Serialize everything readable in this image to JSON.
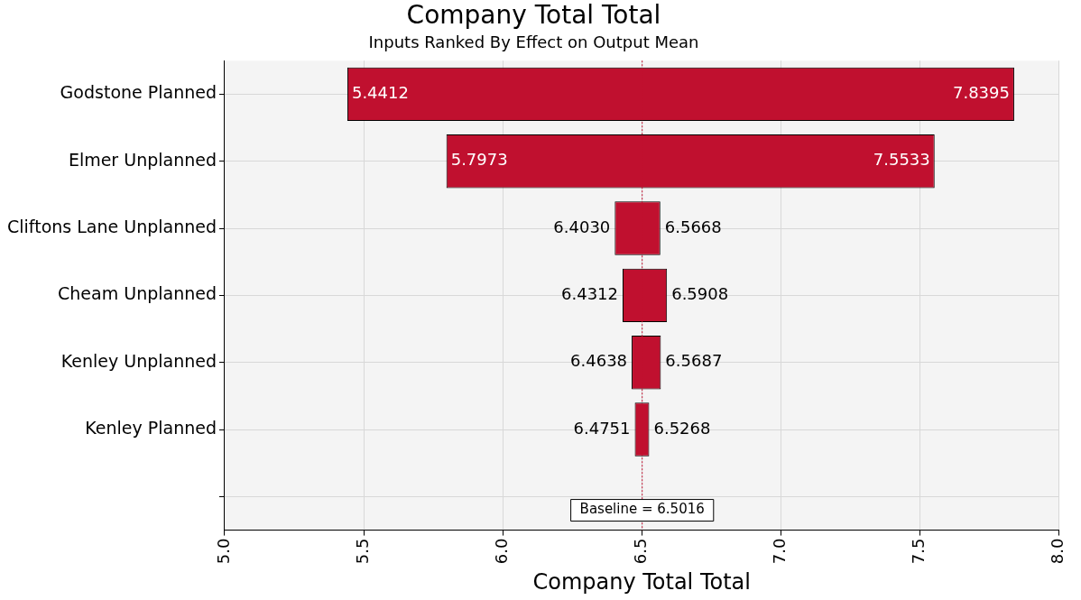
{
  "chart_data": {
    "type": "bar",
    "orientation": "horizontal",
    "title": "Company Total Total",
    "subtitle": "Inputs Ranked By Effect on Output Mean",
    "xlabel": "Company Total Total",
    "categories": [
      "Godstone Planned",
      "Elmer Unplanned",
      "Cliftons Lane Unplanned",
      "Cheam Unplanned",
      "Kenley Unplanned",
      "Kenley Planned"
    ],
    "base": [
      5.4412,
      5.7973,
      6.403,
      6.4312,
      6.4638,
      6.4751
    ],
    "values": [
      2.3983,
      1.756,
      0.1638,
      0.1596,
      0.1049,
      0.0517
    ],
    "color": "#c0102f",
    "xlim": [
      5,
      8
    ],
    "xticks": [
      {
        "value": 5,
        "label": "5.0"
      },
      {
        "value": 5.5,
        "label": "5.5"
      },
      {
        "value": 6,
        "label": "6.0"
      },
      {
        "value": 6.5,
        "label": "6.5"
      },
      {
        "value": 7,
        "label": "7.0"
      },
      {
        "value": 7.5,
        "label": "7.5"
      },
      {
        "value": 8,
        "label": "8.0"
      }
    ],
    "grid": true,
    "ref_lines": [
      {
        "axis": "x",
        "value": 6.5016,
        "label": "Baseline = 6.5016",
        "color": "#c0102f",
        "line_style": "dotted"
      }
    ],
    "annotations": [
      {
        "text": "5.4412",
        "x": 5.4412,
        "y": "Godstone Planned"
      },
      {
        "text": "7.8395",
        "x": 7.8395,
        "y": "Godstone Planned"
      },
      {
        "text": "5.7973",
        "x": 5.7973,
        "y": "Elmer Unplanned"
      },
      {
        "text": "7.5533",
        "x": 7.5533,
        "y": "Elmer Unplanned"
      },
      {
        "text": "6.4030",
        "x": 6.403,
        "y": "Cliftons Lane Unplanned"
      },
      {
        "text": "6.5668",
        "x": 6.5668,
        "y": "Cliftons Lane Unplanned"
      },
      {
        "text": "6.4312",
        "x": 6.4312,
        "y": "Cheam Unplanned"
      },
      {
        "text": "6.5908",
        "x": 6.5908,
        "y": "Cheam Unplanned"
      },
      {
        "text": "6.4638",
        "x": 6.4638,
        "y": "Kenley Unplanned"
      },
      {
        "text": "6.5687",
        "x": 6.5687,
        "y": "Kenley Unplanned"
      },
      {
        "text": "6.4751",
        "x": 6.4751,
        "y": "Kenley Planned"
      },
      {
        "text": "6.5268",
        "x": 6.5268,
        "y": "Kenley Planned"
      }
    ]
  }
}
